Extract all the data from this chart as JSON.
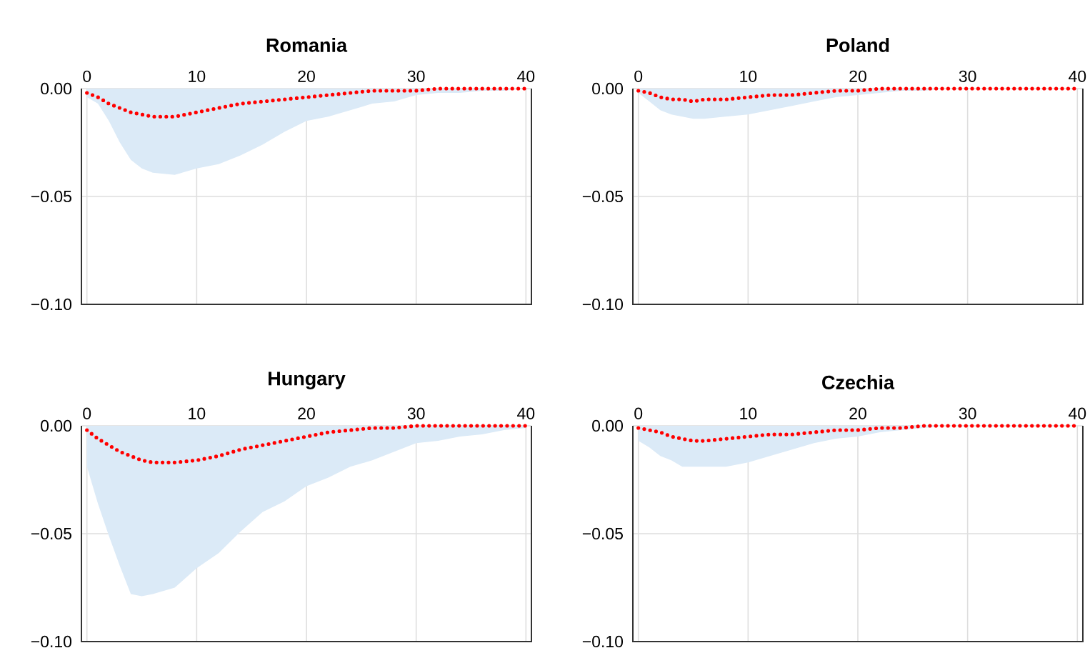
{
  "chart_data": [
    {
      "type": "line",
      "title": "Romania",
      "x": [
        0,
        1,
        2,
        3,
        4,
        5,
        6,
        8,
        10,
        12,
        14,
        16,
        18,
        20,
        22,
        24,
        26,
        28,
        30,
        32,
        34,
        36,
        38,
        40
      ],
      "xlim": [
        -0.5,
        40.5
      ],
      "ylim": [
        -0.1,
        0
      ],
      "xticks": [
        0,
        10,
        20,
        30,
        40
      ],
      "yticks": [
        {
          "value": 0,
          "label": "0.00"
        },
        {
          "value": -0.05,
          "label": "−0.05"
        },
        {
          "value": -0.1,
          "label": "−0.10"
        }
      ],
      "grid": true,
      "line_style": "dotted",
      "series": [
        {
          "type": "area",
          "color": "#dbeaf7",
          "values": [
            -0.004,
            -0.007,
            -0.015,
            -0.025,
            -0.033,
            -0.037,
            -0.039,
            -0.04,
            -0.037,
            -0.035,
            -0.031,
            -0.026,
            -0.02,
            -0.015,
            -0.013,
            -0.01,
            -0.007,
            -0.006,
            -0.003,
            -0.002,
            -0.002,
            -0.001,
            -0.001,
            0
          ]
        },
        {
          "color": "#ff0000",
          "values": [
            -0.002,
            -0.004,
            -0.007,
            -0.009,
            -0.011,
            -0.012,
            -0.013,
            -0.013,
            -0.011,
            -0.009,
            -0.007,
            -0.006,
            -0.005,
            -0.004,
            -0.003,
            -0.002,
            -0.001,
            -0.001,
            -0.001,
            0,
            0,
            0,
            0,
            0
          ]
        }
      ]
    },
    {
      "type": "line",
      "title": "Poland",
      "x": [
        0,
        1,
        2,
        3,
        4,
        5,
        6,
        8,
        10,
        12,
        14,
        16,
        18,
        20,
        22,
        24,
        26,
        28,
        30,
        32,
        34,
        36,
        38,
        40
      ],
      "xlim": [
        -0.5,
        40.5
      ],
      "ylim": [
        -0.1,
        0
      ],
      "xticks": [
        0,
        10,
        20,
        30,
        40
      ],
      "yticks": [
        {
          "value": 0,
          "label": "0.00"
        },
        {
          "value": -0.05,
          "label": "−0.05"
        },
        {
          "value": -0.1,
          "label": "−0.10"
        }
      ],
      "grid": true,
      "line_style": "dotted",
      "series": [
        {
          "type": "area",
          "color": "#dbeaf7",
          "values": [
            -0.002,
            -0.006,
            -0.01,
            -0.012,
            -0.013,
            -0.014,
            -0.014,
            -0.013,
            -0.012,
            -0.01,
            -0.008,
            -0.006,
            -0.004,
            -0.003,
            -0.002,
            -0.001,
            -0.001,
            0,
            0,
            0,
            0,
            0,
            0,
            0
          ]
        },
        {
          "color": "#ff0000",
          "values": [
            -0.001,
            -0.002,
            -0.004,
            -0.005,
            -0.005,
            -0.006,
            -0.005,
            -0.005,
            -0.004,
            -0.003,
            -0.003,
            -0.002,
            -0.001,
            -0.001,
            0,
            0,
            0,
            0,
            0,
            0,
            0,
            0,
            0,
            0
          ]
        }
      ]
    },
    {
      "type": "line",
      "title": "Hungary",
      "x": [
        0,
        1,
        2,
        3,
        4,
        5,
        6,
        8,
        10,
        12,
        14,
        16,
        18,
        20,
        22,
        24,
        26,
        28,
        30,
        32,
        34,
        36,
        38,
        40
      ],
      "xlim": [
        -0.5,
        40.5
      ],
      "ylim": [
        -0.1,
        0
      ],
      "xticks": [
        0,
        10,
        20,
        30,
        40
      ],
      "yticks": [
        {
          "value": 0,
          "label": "0.00"
        },
        {
          "value": -0.05,
          "label": "−0.05"
        },
        {
          "value": -0.1,
          "label": "−0.10"
        }
      ],
      "grid": true,
      "line_style": "dotted",
      "series": [
        {
          "type": "area",
          "color": "#dbeaf7",
          "values": [
            -0.019,
            -0.036,
            -0.051,
            -0.065,
            -0.078,
            -0.079,
            -0.078,
            -0.075,
            -0.066,
            -0.059,
            -0.049,
            -0.04,
            -0.035,
            -0.028,
            -0.024,
            -0.019,
            -0.016,
            -0.012,
            -0.008,
            -0.007,
            -0.005,
            -0.004,
            -0.002,
            -0.001
          ]
        },
        {
          "color": "#ff0000",
          "values": [
            -0.002,
            -0.006,
            -0.009,
            -0.012,
            -0.014,
            -0.016,
            -0.017,
            -0.017,
            -0.016,
            -0.014,
            -0.011,
            -0.009,
            -0.007,
            -0.005,
            -0.003,
            -0.002,
            -0.001,
            -0.001,
            0,
            0,
            0,
            0,
            0,
            0
          ]
        }
      ]
    },
    {
      "type": "line",
      "title": "Czechia",
      "x": [
        0,
        1,
        2,
        3,
        4,
        5,
        6,
        8,
        10,
        12,
        14,
        16,
        18,
        20,
        22,
        24,
        26,
        28,
        30,
        32,
        34,
        36,
        38,
        40
      ],
      "xlim": [
        -0.5,
        40.5
      ],
      "ylim": [
        -0.1,
        0
      ],
      "xticks": [
        0,
        10,
        20,
        30,
        40
      ],
      "yticks": [
        {
          "value": 0,
          "label": "0.00"
        },
        {
          "value": -0.05,
          "label": "−0.05"
        },
        {
          "value": -0.1,
          "label": "−0.10"
        }
      ],
      "grid": true,
      "line_style": "dotted",
      "series": [
        {
          "type": "area",
          "color": "#dbeaf7",
          "values": [
            -0.007,
            -0.01,
            -0.014,
            -0.016,
            -0.019,
            -0.019,
            -0.019,
            -0.019,
            -0.017,
            -0.014,
            -0.011,
            -0.008,
            -0.006,
            -0.005,
            -0.003,
            -0.002,
            -0.001,
            0,
            0,
            0,
            0,
            0,
            0,
            0
          ]
        },
        {
          "color": "#ff0000",
          "values": [
            -0.001,
            -0.002,
            -0.003,
            -0.005,
            -0.006,
            -0.007,
            -0.007,
            -0.006,
            -0.005,
            -0.004,
            -0.004,
            -0.003,
            -0.002,
            -0.002,
            -0.001,
            -0.001,
            0,
            0,
            0,
            0,
            0,
            0,
            0,
            0
          ]
        }
      ]
    }
  ]
}
